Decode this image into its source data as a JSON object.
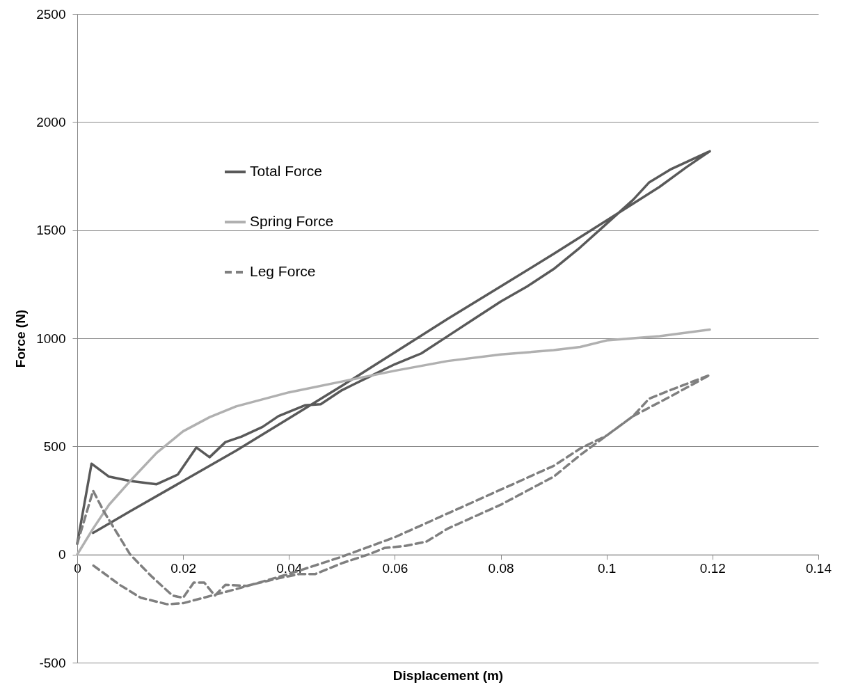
{
  "chart_data": {
    "type": "line",
    "xlabel": "Displacement (m)",
    "ylabel": "Force (N)",
    "xlim": [
      0,
      0.14
    ],
    "xticks": [
      0,
      0.02,
      0.04,
      0.06,
      0.08,
      0.1,
      0.12,
      0.14
    ],
    "ylim": [
      -500,
      2500
    ],
    "yticks": [
      -500,
      0,
      500,
      1000,
      1500,
      2000,
      2500
    ],
    "grid": "y",
    "legend": "top left",
    "series": [
      {
        "name": "Total Force",
        "color": "#595959",
        "line_style": "solid",
        "x": [
          0,
          0.0027,
          0.006,
          0.01,
          0.015,
          0.019,
          0.0225,
          0.025,
          0.028,
          0.031,
          0.035,
          0.038,
          0.043,
          0.046,
          0.05,
          0.055,
          0.06,
          0.065,
          0.07,
          0.075,
          0.08,
          0.085,
          0.09,
          0.095,
          0.1,
          0.105,
          0.108,
          0.112,
          0.1195,
          0.115,
          0.11,
          0.1,
          0.09,
          0.08,
          0.07,
          0.06,
          0.05,
          0.04,
          0.03,
          0.02,
          0.01,
          0.003
        ],
        "values": [
          50,
          420,
          360,
          340,
          325,
          370,
          495,
          450,
          520,
          545,
          590,
          640,
          690,
          695,
          760,
          820,
          880,
          930,
          1010,
          1090,
          1170,
          1240,
          1320,
          1420,
          1530,
          1640,
          1720,
          1780,
          1865,
          1790,
          1700,
          1545,
          1390,
          1240,
          1090,
          935,
          780,
          630,
          480,
          340,
          200,
          100
        ]
      },
      {
        "name": "Spring Force",
        "color": "#b0b0b0",
        "line_style": "solid",
        "x": [
          0,
          0.003,
          0.006,
          0.01,
          0.015,
          0.02,
          0.025,
          0.03,
          0.04,
          0.05,
          0.06,
          0.07,
          0.08,
          0.09,
          0.095,
          0.1,
          0.11,
          0.1195
        ],
        "values": [
          0,
          120,
          230,
          340,
          470,
          570,
          635,
          685,
          750,
          800,
          850,
          895,
          925,
          945,
          960,
          990,
          1010,
          1040
        ]
      },
      {
        "name": "Leg Force",
        "color": "#7f7f7f",
        "line_style": "dashed",
        "x": [
          0,
          0.003,
          0.005,
          0.008,
          0.01,
          0.014,
          0.018,
          0.02,
          0.022,
          0.024,
          0.026,
          0.028,
          0.032,
          0.038,
          0.042,
          0.045,
          0.05,
          0.055,
          0.058,
          0.062,
          0.066,
          0.07,
          0.08,
          0.09,
          0.095,
          0.1,
          0.105,
          0.108,
          0.112,
          0.1195,
          0.112,
          0.105,
          0.1,
          0.095,
          0.09,
          0.08,
          0.07,
          0.06,
          0.05,
          0.04,
          0.03,
          0.02,
          0.017,
          0.012,
          0.008,
          0.003
        ],
        "values": [
          50,
          295,
          200,
          80,
          0,
          -100,
          -190,
          -200,
          -130,
          -130,
          -190,
          -140,
          -145,
          -110,
          -90,
          -90,
          -40,
          0,
          30,
          40,
          60,
          120,
          230,
          360,
          460,
          550,
          640,
          720,
          760,
          830,
          730,
          640,
          550,
          490,
          410,
          300,
          190,
          80,
          -10,
          -90,
          -160,
          -225,
          -230,
          -200,
          -140,
          -50
        ]
      }
    ]
  }
}
